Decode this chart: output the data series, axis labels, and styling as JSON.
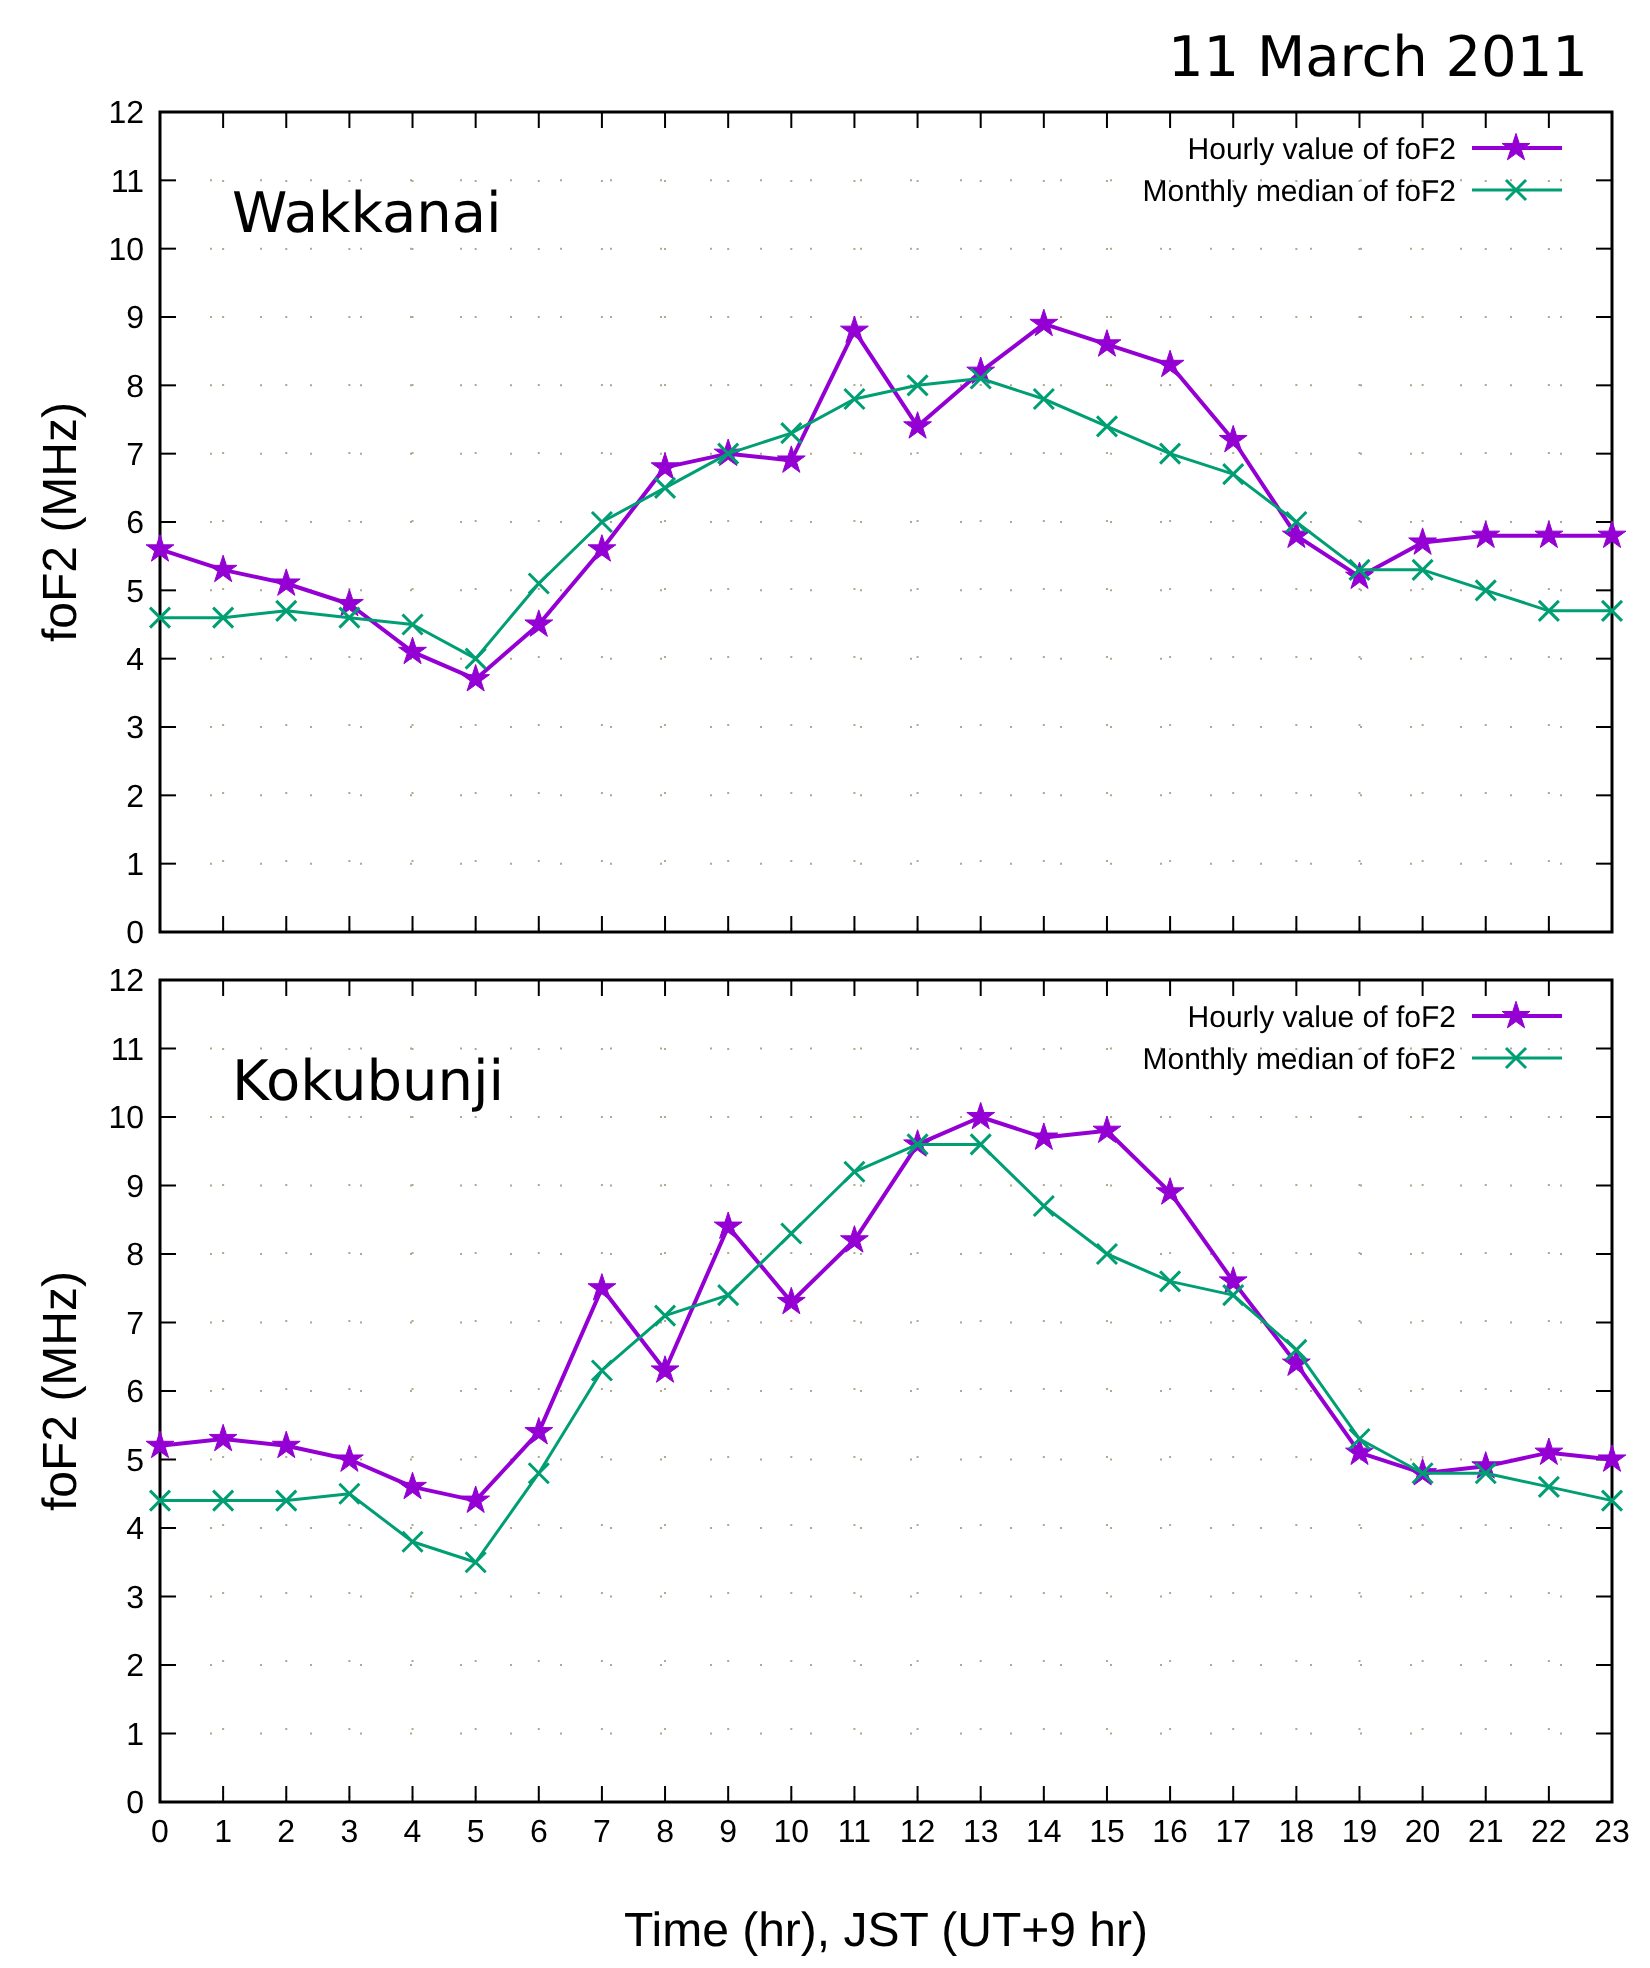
{
  "chart_data": [
    {
      "type": "line",
      "title": "11 March 2011",
      "annotations": [
        "Wakkanai"
      ],
      "ylabel": "foF2 (MHz)",
      "x": [
        0,
        1,
        2,
        3,
        4,
        5,
        6,
        7,
        8,
        9,
        10,
        11,
        12,
        13,
        14,
        15,
        16,
        17,
        18,
        19,
        20,
        21,
        22,
        23
      ],
      "xlim": [
        0,
        23
      ],
      "xticks": [
        0,
        1,
        2,
        3,
        4,
        5,
        6,
        7,
        8,
        9,
        10,
        11,
        12,
        13,
        14,
        15,
        16,
        17,
        18,
        19,
        20,
        21,
        22,
        23
      ],
      "ylim": [
        0,
        12
      ],
      "yticks": [
        0,
        1,
        2,
        3,
        4,
        5,
        6,
        7,
        8,
        9,
        10,
        11,
        12
      ],
      "grid": true,
      "legend": "top right",
      "tick_labels": "y",
      "series": [
        {
          "name": "Hourly value of foF2",
          "color": "#9400d3",
          "marker": "star",
          "values": [
            5.6,
            5.3,
            5.1,
            4.8,
            4.1,
            3.7,
            4.5,
            5.6,
            6.8,
            7.0,
            6.9,
            8.8,
            7.4,
            8.2,
            8.9,
            8.6,
            8.3,
            7.2,
            5.8,
            5.2,
            5.7,
            5.8,
            5.8,
            5.8
          ]
        },
        {
          "name": "Monthly median of foF2",
          "color": "#009e73",
          "marker": "cross",
          "values": [
            4.6,
            4.6,
            4.7,
            4.6,
            4.5,
            4.0,
            5.1,
            6.0,
            6.5,
            7.0,
            7.3,
            7.8,
            8.0,
            8.1,
            7.8,
            7.4,
            7.0,
            6.7,
            6.0,
            5.3,
            5.3,
            5.0,
            4.7,
            4.7
          ]
        }
      ]
    },
    {
      "type": "line",
      "annotations": [
        "Kokubunji"
      ],
      "ylabel": "foF2 (MHz)",
      "xlabel": "Time (hr), JST (UT+9 hr)",
      "x": [
        0,
        1,
        2,
        3,
        4,
        5,
        6,
        7,
        8,
        9,
        10,
        11,
        12,
        13,
        14,
        15,
        16,
        17,
        18,
        19,
        20,
        21,
        22,
        23
      ],
      "xlim": [
        0,
        23
      ],
      "xticks": [
        0,
        1,
        2,
        3,
        4,
        5,
        6,
        7,
        8,
        9,
        10,
        11,
        12,
        13,
        14,
        15,
        16,
        17,
        18,
        19,
        20,
        21,
        22,
        23
      ],
      "ylim": [
        0,
        12
      ],
      "yticks": [
        0,
        1,
        2,
        3,
        4,
        5,
        6,
        7,
        8,
        9,
        10,
        11,
        12
      ],
      "grid": true,
      "legend": "top right",
      "series": [
        {
          "name": "Hourly value of foF2",
          "color": "#9400d3",
          "marker": "star",
          "values": [
            5.2,
            5.3,
            5.2,
            5.0,
            4.6,
            4.4,
            5.4,
            7.5,
            6.3,
            8.4,
            7.3,
            8.2,
            9.6,
            10.0,
            9.7,
            9.8,
            8.9,
            7.6,
            6.4,
            5.1,
            4.8,
            4.9,
            5.1,
            5.0
          ]
        },
        {
          "name": "Monthly median of foF2",
          "color": "#009e73",
          "marker": "cross",
          "values": [
            4.4,
            4.4,
            4.4,
            4.5,
            3.8,
            3.5,
            4.8,
            6.3,
            7.1,
            7.4,
            8.3,
            9.2,
            9.6,
            9.6,
            8.7,
            8.0,
            7.6,
            7.4,
            6.6,
            5.3,
            4.8,
            4.8,
            4.6,
            4.4
          ]
        }
      ]
    }
  ]
}
